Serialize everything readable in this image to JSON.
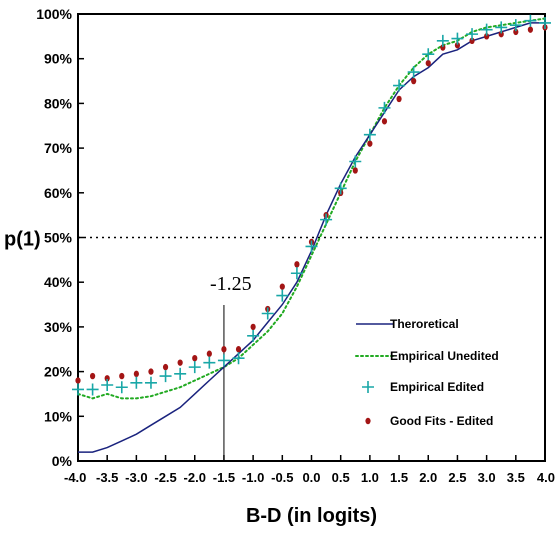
{
  "chart_data": {
    "type": "line",
    "xlabel": "B-D (in logits)",
    "ylabel": "p(1)",
    "xlim": [
      -4.0,
      4.0
    ],
    "ylim": [
      0,
      100
    ],
    "x_ticks": [
      -4.0,
      -3.5,
      -3.0,
      -2.5,
      -2.0,
      -1.5,
      -1.0,
      -0.5,
      0.0,
      0.5,
      1.0,
      1.5,
      2.0,
      2.5,
      3.0,
      3.5,
      4.0
    ],
    "x_tick_labels": [
      "-4.0",
      "-3.5",
      "-3.0",
      "-2.5",
      "-2.0",
      "-1.5",
      "-1.0",
      "-0.5",
      "0.0",
      "0.5",
      "1.0",
      "1.5",
      "2.0",
      "2.5",
      "3.0",
      "3.5",
      "4.0"
    ],
    "y_ticks": [
      0,
      10,
      20,
      30,
      40,
      50,
      60,
      70,
      80,
      90,
      100
    ],
    "y_tick_labels": [
      "0%",
      "10%",
      "20%",
      "30%",
      "40%",
      "50%",
      "60%",
      "70%",
      "80%",
      "90%",
      "100%"
    ],
    "reference_line_y": 50,
    "annotation": {
      "text": "-1.25",
      "x": -1.5
    },
    "legend_position": "lower-right",
    "colors": {
      "theoretical": "#1a237e",
      "empirical_unedited": "#22aa22",
      "empirical_edited": "#19a7a7",
      "good_fits": "#a31515"
    },
    "series": [
      {
        "name": "Theroretical",
        "style": "solid-line",
        "x": [
          -4.0,
          -3.75,
          -3.5,
          -3.25,
          -3.0,
          -2.75,
          -2.5,
          -2.25,
          -2.0,
          -1.75,
          -1.5,
          -1.25,
          -1.0,
          -0.75,
          -0.5,
          -0.25,
          0.0,
          0.25,
          0.5,
          0.75,
          1.0,
          1.25,
          1.5,
          1.75,
          2.0,
          2.25,
          2.5,
          2.75,
          3.0,
          3.25,
          3.5,
          3.75,
          4.0
        ],
        "values": [
          2,
          2,
          3,
          4.5,
          6,
          8,
          10,
          12,
          15,
          18,
          21,
          24,
          27,
          31,
          35,
          40,
          47,
          55,
          62,
          68,
          73,
          78,
          83,
          86,
          88,
          91,
          92,
          94,
          95,
          96,
          97,
          98,
          98
        ]
      },
      {
        "name": "Empirical Unedited",
        "style": "dotted-line",
        "x": [
          -4.0,
          -3.75,
          -3.5,
          -3.25,
          -3.0,
          -2.75,
          -2.5,
          -2.25,
          -2.0,
          -1.75,
          -1.5,
          -1.25,
          -1.0,
          -0.75,
          -0.5,
          -0.25,
          0.0,
          0.25,
          0.5,
          0.75,
          1.0,
          1.25,
          1.5,
          1.75,
          2.0,
          2.25,
          2.5,
          2.75,
          3.0,
          3.25,
          3.5,
          3.75,
          4.0
        ],
        "values": [
          15,
          14,
          15,
          14,
          14,
          14.5,
          15.5,
          16.5,
          18,
          19.5,
          21,
          23,
          26,
          29,
          33,
          39,
          46,
          53,
          60,
          67,
          73,
          79,
          84,
          88,
          91,
          93,
          94,
          96,
          97,
          97.5,
          98,
          98.5,
          99
        ]
      },
      {
        "name": "Empirical Edited",
        "style": "plus-marker",
        "x": [
          -4.0,
          -3.75,
          -3.5,
          -3.25,
          -3.0,
          -2.75,
          -2.5,
          -2.25,
          -2.0,
          -1.75,
          -1.5,
          -1.25,
          -1.0,
          -0.75,
          -0.5,
          -0.25,
          0.0,
          0.25,
          0.5,
          0.75,
          1.0,
          1.25,
          1.5,
          1.75,
          2.0,
          2.25,
          2.5,
          2.75,
          3.0,
          3.25,
          3.5,
          3.75,
          4.0
        ],
        "values": [
          16,
          16,
          17,
          16.5,
          17.5,
          17.5,
          19,
          19.5,
          21,
          22,
          22.5,
          23,
          28,
          33,
          37,
          42,
          48,
          54,
          61,
          67,
          73,
          79,
          84,
          87,
          91,
          94,
          94.5,
          95.5,
          96.5,
          97,
          97.5,
          98.5,
          98
        ]
      },
      {
        "name": "Good Fits - Edited",
        "style": "dot-marker",
        "x": [
          -4.0,
          -3.75,
          -3.5,
          -3.25,
          -3.0,
          -2.75,
          -2.5,
          -2.25,
          -2.0,
          -1.75,
          -1.5,
          -1.25,
          -1.0,
          -0.75,
          -0.5,
          -0.25,
          0.0,
          0.25,
          0.5,
          0.75,
          1.0,
          1.25,
          1.5,
          1.75,
          2.0,
          2.25,
          2.5,
          2.75,
          3.0,
          3.25,
          3.5,
          3.75,
          4.0
        ],
        "values": [
          18,
          19,
          18.5,
          19,
          19.5,
          20,
          21,
          22,
          23,
          24,
          25,
          25,
          30,
          34,
          39,
          44,
          49,
          55,
          60,
          65,
          71,
          76,
          81,
          85,
          89,
          92.5,
          93,
          94,
          95,
          95.5,
          96,
          96.5,
          97
        ]
      }
    ]
  }
}
